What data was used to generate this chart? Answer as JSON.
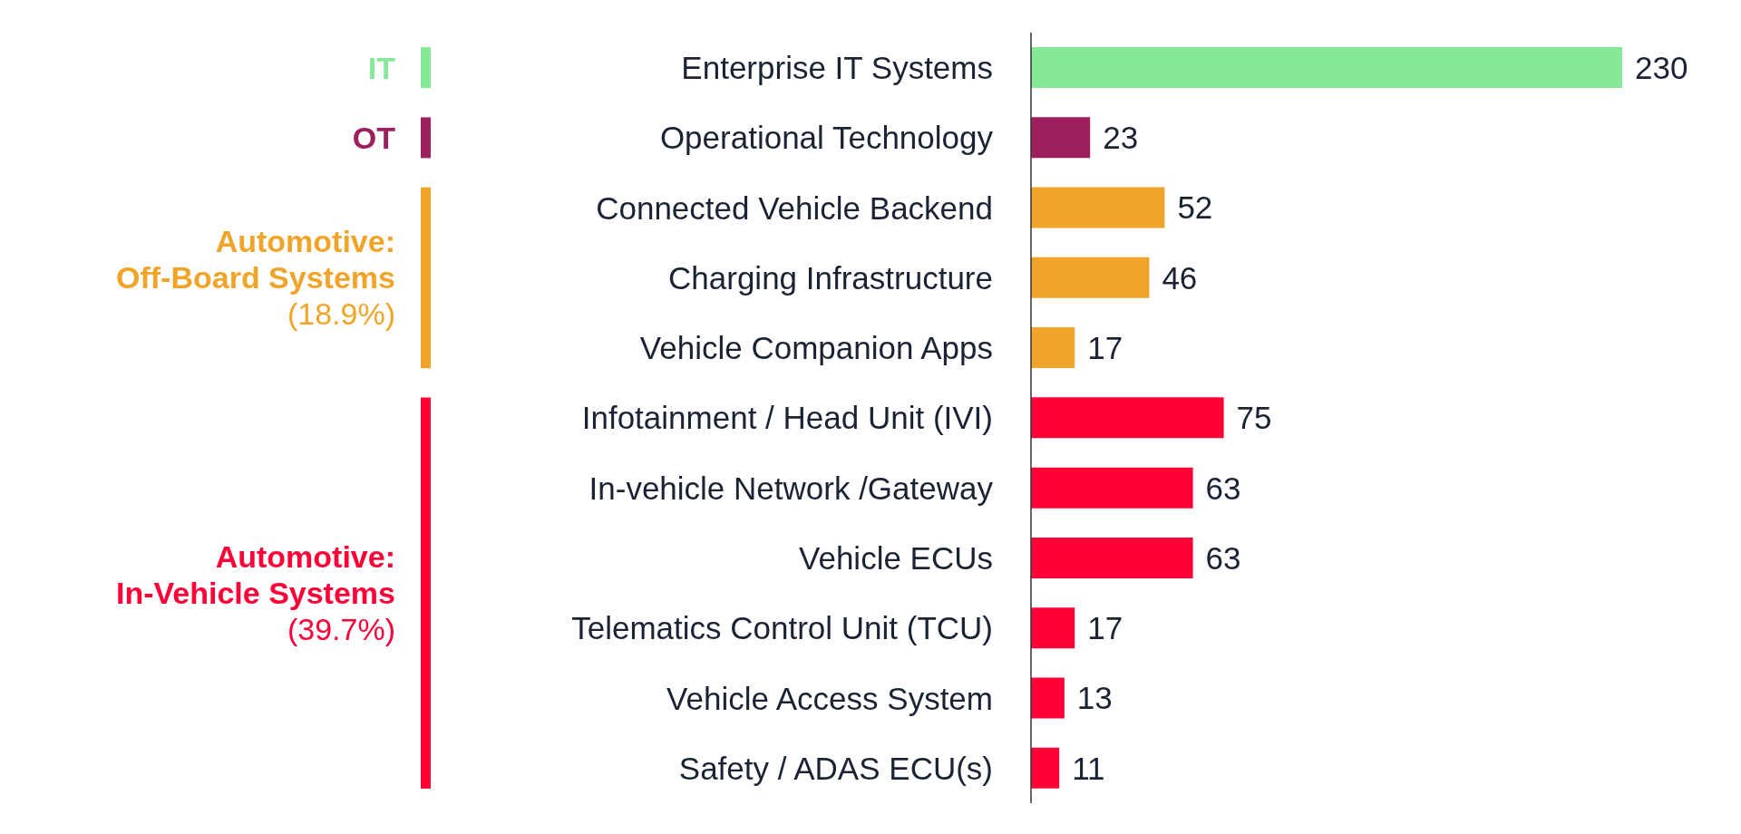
{
  "chart_data": {
    "type": "bar",
    "orientation": "horizontal",
    "categories": [
      "Enterprise IT Systems",
      "Operational Technology",
      "Connected Vehicle Backend",
      "Charging Infrastructure",
      "Vehicle Companion Apps",
      "Infotainment / Head Unit (IVI)",
      "In-vehicle Network /Gateway",
      "Vehicle ECUs",
      "Telematics Control Unit (TCU)",
      "Vehicle Access System",
      "Safety / ADAS ECU(s)"
    ],
    "values": [
      230,
      23,
      52,
      46,
      17,
      75,
      63,
      63,
      17,
      13,
      11
    ],
    "colors": [
      "#88e89a",
      "#9e1f5e",
      "#f0a42a",
      "#f0a42a",
      "#f0a42a",
      "#ff0037",
      "#ff0037",
      "#ff0037",
      "#ff0037",
      "#ff0037",
      "#ff0037"
    ],
    "data_labels": true,
    "annotations": [
      "IT",
      "OT",
      "Automotive:\nOff-Board Systems\n(18.9%)",
      "Automotive:\nIn-Vehicle Systems\n(39.7%)"
    ]
  }
}
